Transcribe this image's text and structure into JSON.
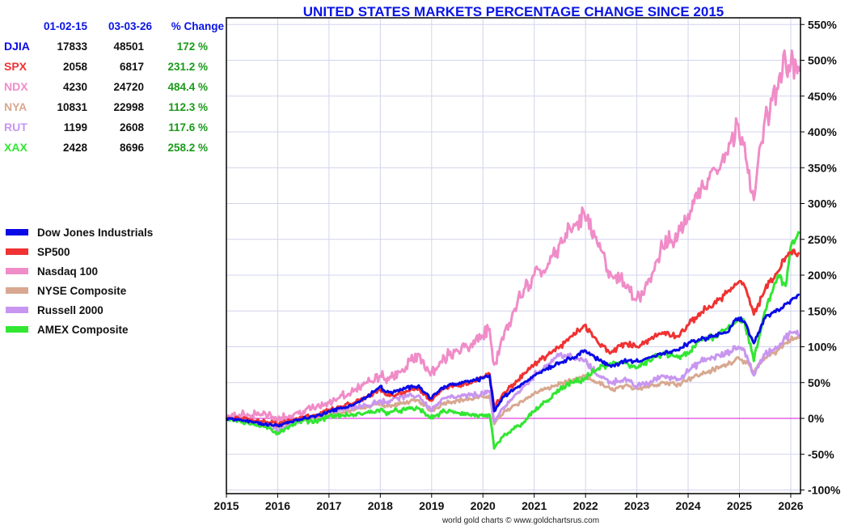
{
  "chart_data": {
    "type": "line",
    "title": "UNITED STATES MARKETS PERCENTAGE CHANGE SINCE 2015",
    "xlabel": "",
    "ylabel": "",
    "xlim": [
      2015.0,
      2026.2
    ],
    "ylim": [
      -100,
      550
    ],
    "x_ticks": [
      "2015",
      "2016",
      "2017",
      "2018",
      "2019",
      "2020",
      "2021",
      "2022",
      "2023",
      "2024",
      "2025",
      "2026"
    ],
    "y_ticks": [
      "550%",
      "500%",
      "450%",
      "400%",
      "350%",
      "300%",
      "250%",
      "200%",
      "150%",
      "100%",
      "50%",
      "0%",
      "-50%",
      "-100%"
    ],
    "grid": true,
    "zero_line_color": "#e040e0",
    "legend_position": "left",
    "x": [
      2015.0,
      2015.25,
      2015.5,
      2015.75,
      2016.0,
      2016.25,
      2016.5,
      2016.75,
      2017.0,
      2017.25,
      2017.5,
      2017.75,
      2018.0,
      2018.1,
      2018.25,
      2018.5,
      2018.75,
      2018.98,
      2019.25,
      2019.5,
      2019.75,
      2020.0,
      2020.13,
      2020.22,
      2020.4,
      2020.6,
      2020.8,
      2021.0,
      2021.25,
      2021.5,
      2021.75,
      2021.98,
      2022.25,
      2022.5,
      2022.75,
      2022.98,
      2023.25,
      2023.5,
      2023.8,
      2024.0,
      2024.25,
      2024.5,
      2024.75,
      2024.98,
      2025.1,
      2025.28,
      2025.5,
      2025.75,
      2025.9,
      2026.0,
      2026.17
    ],
    "series": [
      {
        "name": "Dow Jones Industrials",
        "symbol": "DJIA",
        "color": "#0a0ae6",
        "values": [
          0,
          -2,
          -5,
          -8,
          -10,
          -5,
          0,
          3,
          10,
          14,
          20,
          30,
          45,
          37,
          36,
          42,
          46,
          28,
          45,
          48,
          52,
          56,
          60,
          10,
          30,
          40,
          50,
          60,
          70,
          78,
          85,
          95,
          82,
          72,
          80,
          80,
          85,
          90,
          95,
          105,
          110,
          115,
          120,
          140,
          135,
          105,
          140,
          152,
          160,
          165,
          172
        ]
      },
      {
        "name": "SP500",
        "symbol": "SPX",
        "color": "#f03232",
        "values": [
          0,
          0,
          -2,
          -4,
          -8,
          -3,
          2,
          5,
          12,
          16,
          22,
          30,
          40,
          33,
          32,
          38,
          42,
          25,
          42,
          46,
          50,
          58,
          62,
          15,
          35,
          48,
          62,
          75,
          88,
          100,
          115,
          130,
          105,
          92,
          105,
          100,
          110,
          120,
          115,
          130,
          148,
          160,
          175,
          190,
          185,
          145,
          180,
          205,
          225,
          232,
          231
        ]
      },
      {
        "name": "Nasdaq 100",
        "symbol": "NDX",
        "color": "#f08cc8",
        "values": [
          0,
          5,
          4,
          8,
          0,
          2,
          10,
          15,
          22,
          32,
          40,
          50,
          60,
          55,
          58,
          72,
          90,
          60,
          85,
          95,
          100,
          115,
          125,
          75,
          110,
          150,
          180,
          200,
          210,
          245,
          265,
          285,
          240,
          200,
          190,
          165,
          195,
          240,
          255,
          285,
          320,
          350,
          370,
          410,
          385,
          305,
          420,
          460,
          500,
          495,
          484
        ]
      },
      {
        "name": "NYSE Composite",
        "symbol": "NYA",
        "color": "#d8a890",
        "values": [
          0,
          -2,
          -6,
          -8,
          -12,
          -6,
          -2,
          0,
          5,
          8,
          12,
          16,
          22,
          17,
          18,
          22,
          25,
          10,
          22,
          25,
          27,
          30,
          32,
          -8,
          8,
          18,
          25,
          35,
          42,
          48,
          52,
          58,
          50,
          40,
          45,
          42,
          45,
          50,
          48,
          55,
          62,
          68,
          75,
          85,
          80,
          65,
          85,
          95,
          105,
          110,
          112
        ]
      },
      {
        "name": "Russell 2000",
        "symbol": "RUT",
        "color": "#c896f0",
        "values": [
          0,
          0,
          -4,
          -8,
          -18,
          -8,
          -2,
          3,
          10,
          12,
          15,
          18,
          25,
          22,
          28,
          30,
          32,
          12,
          28,
          30,
          32,
          35,
          38,
          -5,
          15,
          30,
          45,
          60,
          75,
          90,
          85,
          80,
          60,
          50,
          55,
          45,
          50,
          60,
          55,
          65,
          80,
          85,
          90,
          100,
          95,
          60,
          90,
          100,
          112,
          120,
          117
        ]
      },
      {
        "name": "AMEX Composite",
        "symbol": "XAX",
        "color": "#32e632",
        "values": [
          0,
          -3,
          -8,
          -12,
          -20,
          -10,
          -3,
          -4,
          3,
          4,
          5,
          8,
          12,
          8,
          10,
          12,
          14,
          0,
          10,
          8,
          5,
          3,
          5,
          -42,
          -25,
          -15,
          -5,
          10,
          25,
          40,
          50,
          55,
          70,
          75,
          80,
          70,
          80,
          90,
          85,
          90,
          110,
          115,
          125,
          140,
          135,
          80,
          150,
          200,
          185,
          240,
          258
        ]
      }
    ]
  },
  "table": {
    "header": {
      "date_start": "01-02-15",
      "date_end": "03-03-26",
      "change": "% Change"
    },
    "rows": [
      {
        "symbol": "DJIA",
        "start": "17833",
        "end": "48501",
        "change": "172 %",
        "color": "#0a0ae6"
      },
      {
        "symbol": "SPX",
        "start": "2058",
        "end": "6817",
        "change": "231.2 %",
        "color": "#f03232"
      },
      {
        "symbol": "NDX",
        "start": "4230",
        "end": "24720",
        "change": "484.4 %",
        "color": "#f08cc8"
      },
      {
        "symbol": "NYA",
        "start": "10831",
        "end": "22998",
        "change": "112.3 %",
        "color": "#d8a890"
      },
      {
        "symbol": "RUT",
        "start": "1199",
        "end": "2608",
        "change": "117.6 %",
        "color": "#c896f0"
      },
      {
        "symbol": "XAX",
        "start": "2428",
        "end": "8696",
        "change": "258.2 %",
        "color": "#32e632"
      }
    ]
  },
  "legend": {
    "items": [
      {
        "label": "Dow Jones Industrials",
        "color": "#0a0ae6"
      },
      {
        "label": "SP500",
        "color": "#f03232"
      },
      {
        "label": "Nasdaq 100",
        "color": "#f08cc8"
      },
      {
        "label": "NYSE Composite",
        "color": "#d8a890"
      },
      {
        "label": "Russell 2000",
        "color": "#c896f0"
      },
      {
        "label": "AMEX Composite",
        "color": "#32e632"
      }
    ]
  },
  "credit": "world gold charts © www.goldchartsrus.com"
}
